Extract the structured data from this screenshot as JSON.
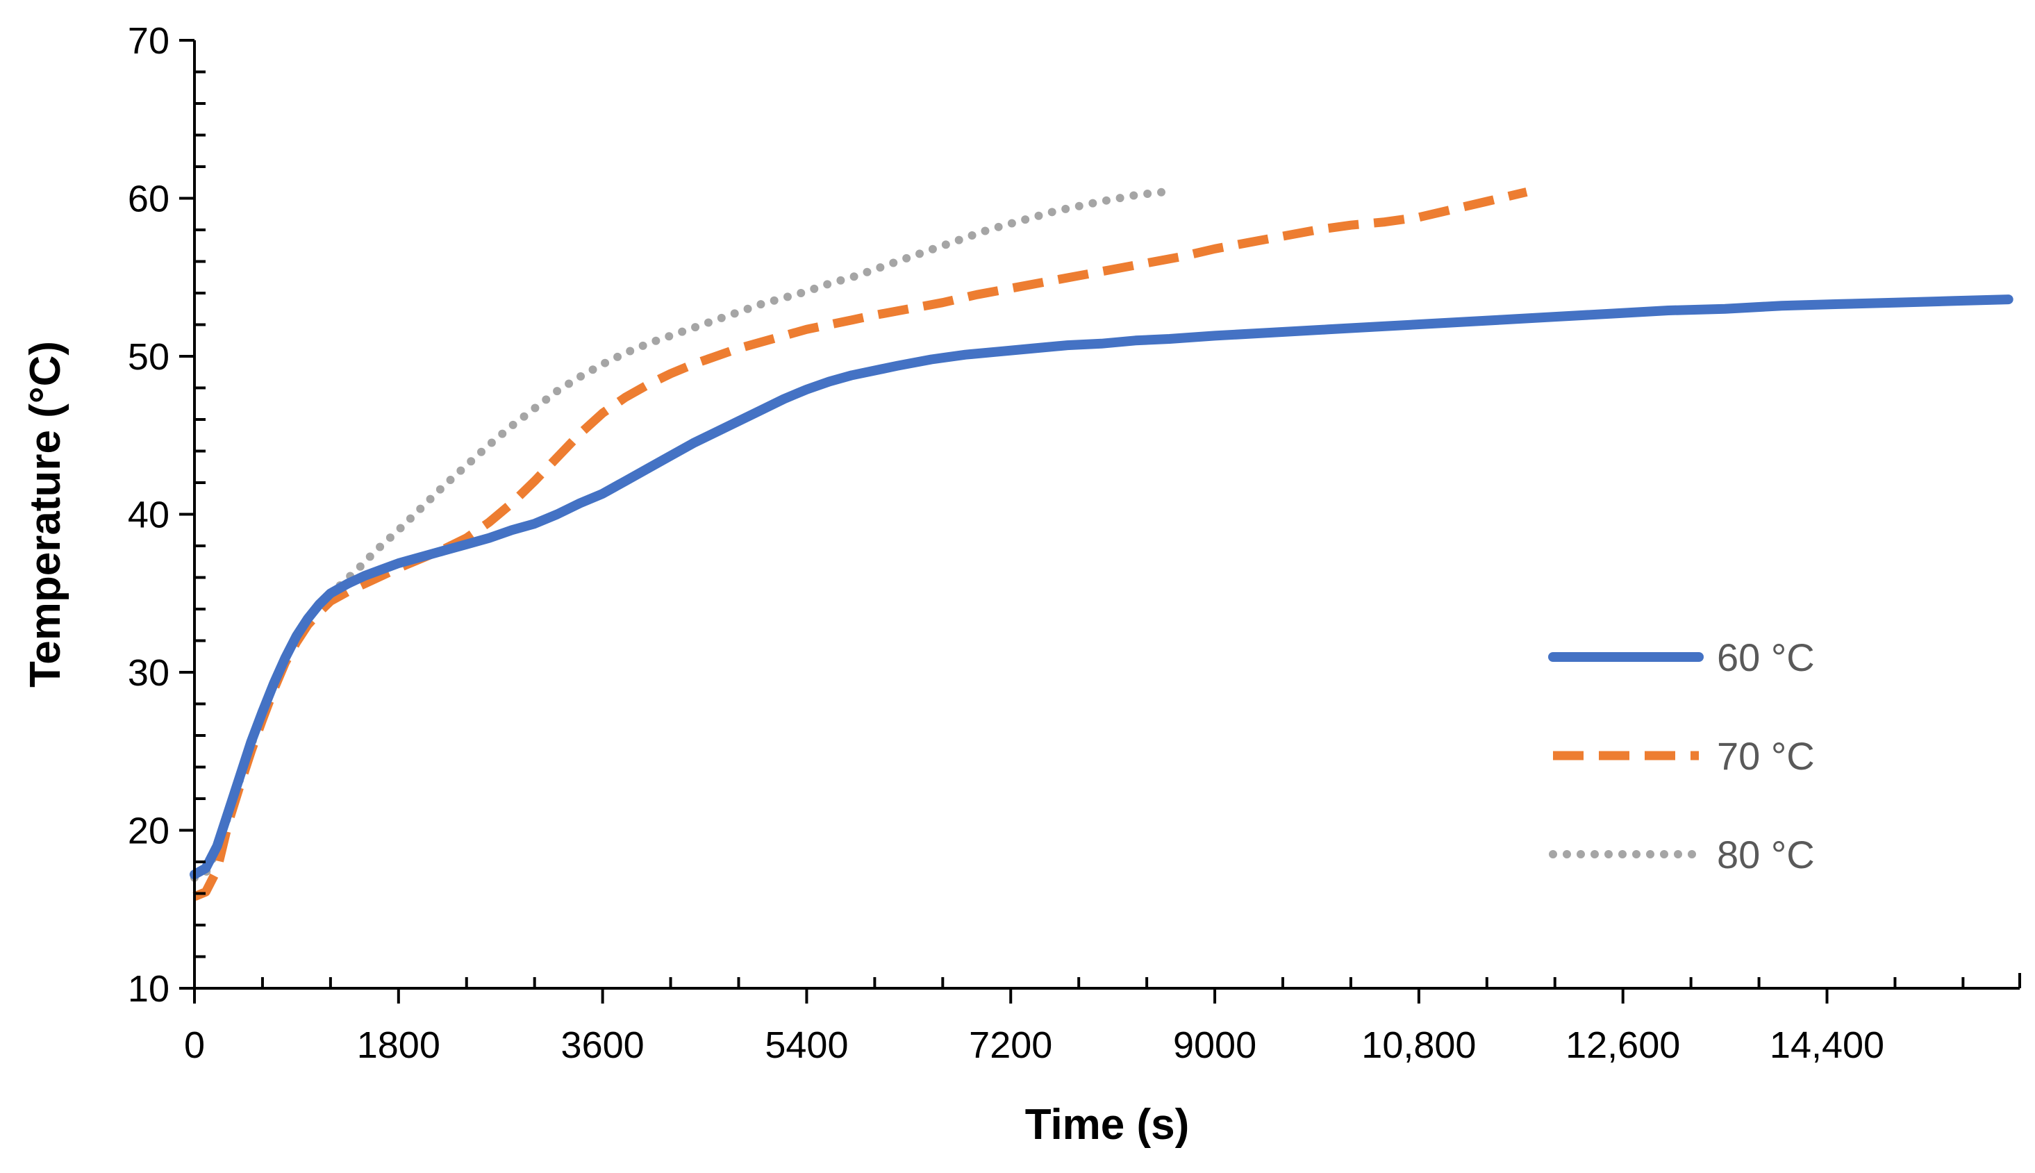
{
  "chart_data": {
    "type": "line",
    "title": "",
    "xlabel": "Time (s)",
    "ylabel": "Temperature (°C)",
    "xlim": [
      0,
      16100
    ],
    "ylim": [
      10,
      70
    ],
    "x_ticks": [
      0,
      1800,
      3600,
      5400,
      7200,
      9000,
      10800,
      12600,
      14400
    ],
    "x_tick_labels": [
      "0",
      "1800",
      "3600",
      "5400",
      "7200",
      "9000",
      "10,800",
      "12,600",
      "14,400"
    ],
    "y_ticks": [
      10,
      20,
      30,
      40,
      50,
      60,
      70
    ],
    "y_tick_labels": [
      "10",
      "20",
      "30",
      "40",
      "50",
      "60",
      "70"
    ],
    "grid": false,
    "legend_position": "right-center",
    "series": [
      {
        "name": "60 °C",
        "color": "#4472C4",
        "style": "solid",
        "points": [
          [
            0,
            17.2
          ],
          [
            100,
            17.6
          ],
          [
            200,
            19.0
          ],
          [
            300,
            21.2
          ],
          [
            400,
            23.4
          ],
          [
            500,
            25.6
          ],
          [
            600,
            27.5
          ],
          [
            700,
            29.3
          ],
          [
            800,
            30.9
          ],
          [
            900,
            32.3
          ],
          [
            1000,
            33.4
          ],
          [
            1100,
            34.3
          ],
          [
            1200,
            35.0
          ],
          [
            1350,
            35.6
          ],
          [
            1500,
            36.1
          ],
          [
            1650,
            36.5
          ],
          [
            1800,
            36.9
          ],
          [
            2000,
            37.3
          ],
          [
            2200,
            37.7
          ],
          [
            2400,
            38.1
          ],
          [
            2600,
            38.5
          ],
          [
            2800,
            39.0
          ],
          [
            3000,
            39.4
          ],
          [
            3200,
            40.0
          ],
          [
            3400,
            40.7
          ],
          [
            3600,
            41.3
          ],
          [
            3800,
            42.1
          ],
          [
            4000,
            42.9
          ],
          [
            4200,
            43.7
          ],
          [
            4400,
            44.5
          ],
          [
            4600,
            45.2
          ],
          [
            4800,
            45.9
          ],
          [
            5000,
            46.6
          ],
          [
            5200,
            47.3
          ],
          [
            5400,
            47.9
          ],
          [
            5600,
            48.4
          ],
          [
            5800,
            48.8
          ],
          [
            6000,
            49.1
          ],
          [
            6200,
            49.4
          ],
          [
            6500,
            49.8
          ],
          [
            6800,
            50.1
          ],
          [
            7100,
            50.3
          ],
          [
            7400,
            50.5
          ],
          [
            7700,
            50.7
          ],
          [
            8000,
            50.8
          ],
          [
            8300,
            51.0
          ],
          [
            8600,
            51.1
          ],
          [
            9000,
            51.3
          ],
          [
            9500,
            51.5
          ],
          [
            10000,
            51.7
          ],
          [
            10500,
            51.9
          ],
          [
            11000,
            52.1
          ],
          [
            11500,
            52.3
          ],
          [
            12000,
            52.5
          ],
          [
            12500,
            52.7
          ],
          [
            13000,
            52.9
          ],
          [
            13500,
            53.0
          ],
          [
            14000,
            53.2
          ],
          [
            14500,
            53.3
          ],
          [
            15000,
            53.4
          ],
          [
            15500,
            53.5
          ],
          [
            16000,
            53.6
          ]
        ]
      },
      {
        "name": "70 °C",
        "color": "#ED7D31",
        "style": "dashed",
        "points": [
          [
            0,
            15.8
          ],
          [
            100,
            16.1
          ],
          [
            200,
            17.5
          ],
          [
            300,
            20.5
          ],
          [
            400,
            22.8
          ],
          [
            500,
            25.0
          ],
          [
            600,
            27.0
          ],
          [
            700,
            28.9
          ],
          [
            800,
            30.6
          ],
          [
            900,
            31.9
          ],
          [
            1000,
            33.0
          ],
          [
            1100,
            33.8
          ],
          [
            1200,
            34.5
          ],
          [
            1350,
            35.1
          ],
          [
            1500,
            35.6
          ],
          [
            1650,
            36.1
          ],
          [
            1800,
            36.6
          ],
          [
            2000,
            37.2
          ],
          [
            2200,
            37.8
          ],
          [
            2400,
            38.5
          ],
          [
            2600,
            39.5
          ],
          [
            2800,
            40.7
          ],
          [
            3000,
            42.1
          ],
          [
            3200,
            43.6
          ],
          [
            3400,
            45.1
          ],
          [
            3600,
            46.4
          ],
          [
            3800,
            47.4
          ],
          [
            4000,
            48.2
          ],
          [
            4200,
            48.9
          ],
          [
            4400,
            49.5
          ],
          [
            4600,
            50.0
          ],
          [
            4800,
            50.5
          ],
          [
            5000,
            50.9
          ],
          [
            5200,
            51.3
          ],
          [
            5400,
            51.7
          ],
          [
            5600,
            52.0
          ],
          [
            5800,
            52.3
          ],
          [
            6000,
            52.6
          ],
          [
            6300,
            53.0
          ],
          [
            6600,
            53.4
          ],
          [
            6900,
            53.9
          ],
          [
            7200,
            54.3
          ],
          [
            7500,
            54.7
          ],
          [
            7800,
            55.1
          ],
          [
            8100,
            55.5
          ],
          [
            8400,
            55.9
          ],
          [
            8700,
            56.3
          ],
          [
            9000,
            56.8
          ],
          [
            9300,
            57.2
          ],
          [
            9600,
            57.6
          ],
          [
            9900,
            58.0
          ],
          [
            10200,
            58.3
          ],
          [
            10500,
            58.5
          ],
          [
            10800,
            58.8
          ],
          [
            11100,
            59.3
          ],
          [
            11400,
            59.8
          ],
          [
            11750,
            60.4
          ]
        ]
      },
      {
        "name": "80 °C",
        "color": "#A5A5A5",
        "style": "dotted",
        "points": [
          [
            0,
            17.0
          ],
          [
            100,
            17.3
          ],
          [
            200,
            18.8
          ],
          [
            300,
            21.0
          ],
          [
            400,
            23.2
          ],
          [
            500,
            25.4
          ],
          [
            600,
            27.4
          ],
          [
            700,
            29.2
          ],
          [
            800,
            30.9
          ],
          [
            900,
            32.3
          ],
          [
            1000,
            33.4
          ],
          [
            1150,
            34.6
          ],
          [
            1300,
            35.6
          ],
          [
            1450,
            36.6
          ],
          [
            1600,
            37.7
          ],
          [
            1800,
            39.0
          ],
          [
            2000,
            40.4
          ],
          [
            2200,
            41.8
          ],
          [
            2400,
            43.1
          ],
          [
            2600,
            44.4
          ],
          [
            2800,
            45.6
          ],
          [
            3000,
            46.7
          ],
          [
            3200,
            47.8
          ],
          [
            3400,
            48.7
          ],
          [
            3600,
            49.5
          ],
          [
            3800,
            50.2
          ],
          [
            4000,
            50.8
          ],
          [
            4200,
            51.3
          ],
          [
            4400,
            51.8
          ],
          [
            4600,
            52.3
          ],
          [
            4800,
            52.8
          ],
          [
            5000,
            53.3
          ],
          [
            5200,
            53.7
          ],
          [
            5400,
            54.1
          ],
          [
            5600,
            54.6
          ],
          [
            5800,
            55.0
          ],
          [
            6000,
            55.5
          ],
          [
            6200,
            56.0
          ],
          [
            6400,
            56.5
          ],
          [
            6600,
            57.0
          ],
          [
            6800,
            57.5
          ],
          [
            7000,
            58.0
          ],
          [
            7200,
            58.4
          ],
          [
            7400,
            58.8
          ],
          [
            7600,
            59.2
          ],
          [
            7800,
            59.5
          ],
          [
            8000,
            59.8
          ],
          [
            8300,
            60.2
          ],
          [
            8550,
            60.4
          ]
        ]
      }
    ]
  }
}
